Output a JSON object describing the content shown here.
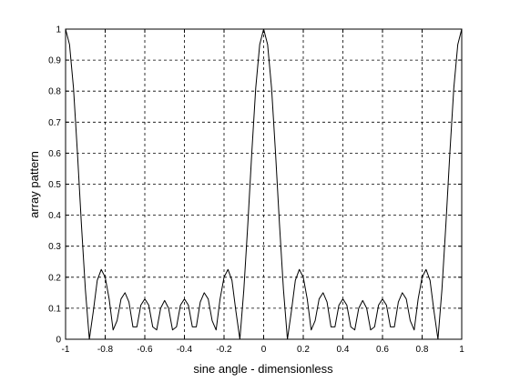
{
  "chart_data": {
    "type": "line",
    "title": "",
    "xlabel": "sine angle - dimensionless",
    "ylabel": "array pattern",
    "xlim": [
      -1,
      1
    ],
    "ylim": [
      0,
      1
    ],
    "grid": true,
    "legend": "none",
    "x_ticks": [
      -1,
      -0.8,
      -0.6,
      -0.4,
      -0.2,
      0,
      0.2,
      0.4,
      0.6,
      0.8,
      1
    ],
    "x_tick_labels": [
      "-1",
      "-0.8",
      "-0.6",
      "-0.4",
      "-0.2",
      "0",
      "0.2",
      "0.4",
      "0.6",
      "0.8",
      "1"
    ],
    "y_ticks": [
      0,
      0.1,
      0.2,
      0.3,
      0.4,
      0.5,
      0.6,
      0.7,
      0.8,
      0.9,
      1
    ],
    "y_tick_labels": [
      "0",
      "0.1",
      "0.2",
      "0.3",
      "0.4",
      "0.5",
      "0.6",
      "0.7",
      "0.8",
      "0.9",
      "1"
    ],
    "series": [
      {
        "x": [
          -1,
          -0.98,
          -0.96,
          -0.94,
          -0.92,
          -0.9,
          -0.88,
          -0.86,
          -0.84,
          -0.82,
          -0.8,
          -0.78,
          -0.76,
          -0.74,
          -0.72,
          -0.7,
          -0.68,
          -0.66,
          -0.64,
          -0.62,
          -0.6,
          -0.58,
          -0.56,
          -0.54,
          -0.52,
          -0.5,
          -0.48,
          -0.46,
          -0.44,
          -0.42,
          -0.4,
          -0.38,
          -0.36,
          -0.34,
          -0.32,
          -0.3,
          -0.28,
          -0.26,
          -0.24,
          -0.22,
          -0.2,
          -0.18,
          -0.16,
          -0.14,
          -0.12,
          -0.1,
          -0.08,
          -0.06,
          -0.04,
          -0.02,
          0,
          0.02,
          0.04,
          0.06,
          0.08,
          0.1,
          0.12,
          0.14,
          0.16,
          0.18,
          0.2,
          0.22,
          0.24,
          0.26,
          0.28,
          0.3,
          0.32,
          0.34,
          0.36,
          0.38,
          0.4,
          0.42,
          0.44,
          0.46,
          0.48,
          0.5,
          0.52,
          0.54,
          0.56,
          0.58,
          0.6,
          0.62,
          0.64,
          0.66,
          0.68,
          0.7,
          0.72,
          0.74,
          0.76,
          0.78,
          0.8,
          0.82,
          0.84,
          0.86,
          0.88,
          0.9,
          0.92,
          0.94,
          0.96,
          0.98,
          1
        ],
        "values": [
          1,
          0.95,
          0.81,
          0.6,
          0.37,
          0.16,
          0,
          0.09,
          0.19,
          0.225,
          0.2,
          0.13,
          0.03,
          0.06,
          0.13,
          0.15,
          0.12,
          0.04,
          0.04,
          0.11,
          0.13,
          0.11,
          0.04,
          0.03,
          0.1,
          0.125,
          0.1,
          0.03,
          0.04,
          0.11,
          0.13,
          0.11,
          0.04,
          0.04,
          0.12,
          0.15,
          0.13,
          0.06,
          0.03,
          0.13,
          0.2,
          0.225,
          0.19,
          0.09,
          0,
          0.16,
          0.37,
          0.6,
          0.81,
          0.95,
          1,
          0.95,
          0.81,
          0.6,
          0.37,
          0.16,
          0,
          0.09,
          0.19,
          0.225,
          0.2,
          0.13,
          0.03,
          0.06,
          0.13,
          0.15,
          0.12,
          0.04,
          0.04,
          0.11,
          0.13,
          0.11,
          0.04,
          0.03,
          0.1,
          0.125,
          0.1,
          0.03,
          0.04,
          0.11,
          0.13,
          0.11,
          0.04,
          0.04,
          0.12,
          0.15,
          0.13,
          0.06,
          0.03,
          0.13,
          0.2,
          0.225,
          0.19,
          0.09,
          0,
          0.16,
          0.37,
          0.6,
          0.81,
          0.95,
          1
        ],
        "color": "#000000"
      }
    ]
  }
}
